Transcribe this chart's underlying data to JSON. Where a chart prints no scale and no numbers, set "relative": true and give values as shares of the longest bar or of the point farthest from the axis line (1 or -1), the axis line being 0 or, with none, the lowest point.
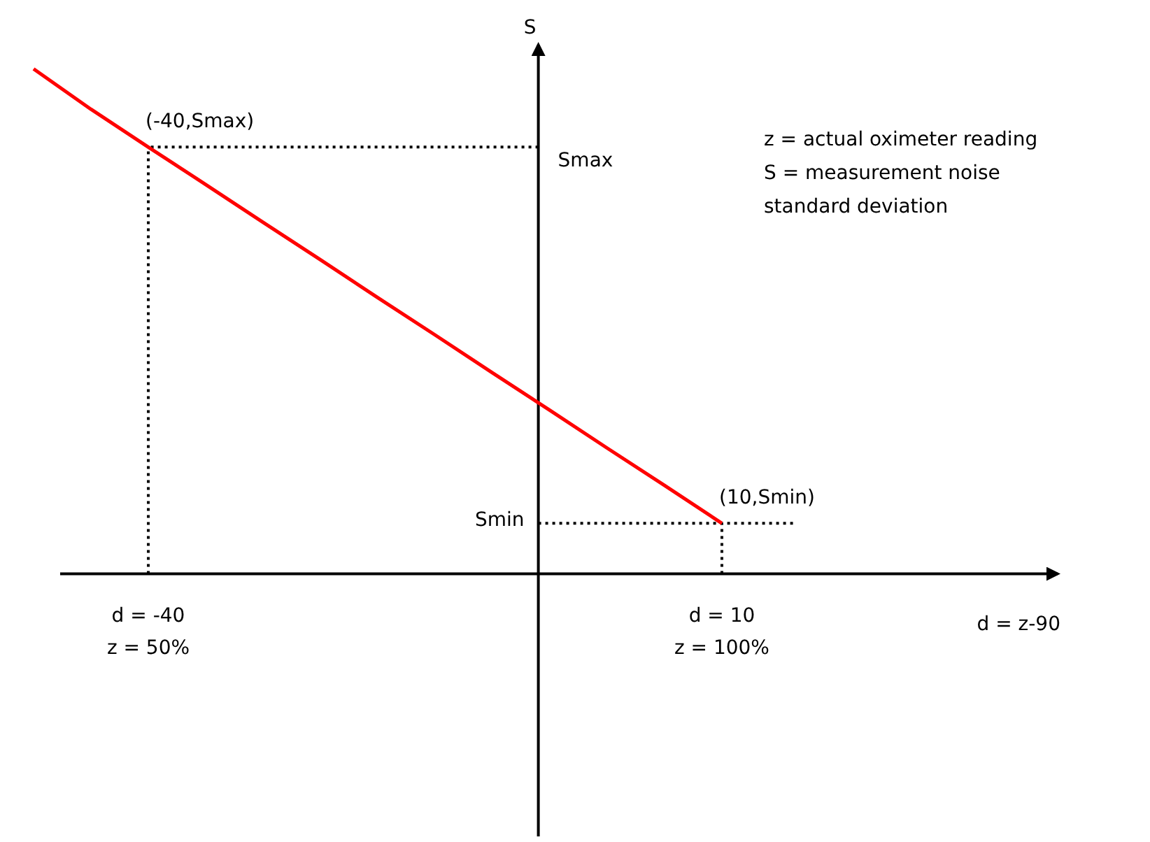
{
  "chart_data": {
    "type": "line",
    "relative": true,
    "categories": [
      null,
      null,
      "d = -40\nz = 50%",
      null,
      null,
      null,
      null,
      null,
      null,
      null,
      null,
      null,
      "d = 10\nz = 100%"
    ],
    "series": [
      {
        "color": "#ff0000",
        "values": [
          1,
          0.92,
          0.845,
          0.771,
          0.696,
          0.622,
          0.547,
          0.473,
          0.398,
          0.324,
          0.249,
          0.175,
          0.1
        ]
      }
    ],
    "ylabel": "S",
    "line_style": "solid",
    "ref_lines": [
      {
        "axis": "y",
        "value": 0.845,
        "label": "Smax",
        "line_style": "dotted",
        "color": "#000000"
      },
      {
        "axis": "y",
        "value": 0.1,
        "label": "Smin",
        "line_style": "dotted",
        "color": "#000000"
      },
      {
        "axis": "x",
        "value": "d = -40\nz = 50%",
        "line_style": "dotted",
        "color": "#000000"
      },
      {
        "axis": "x",
        "value": "d = 10\nz = 100%",
        "line_style": "dotted",
        "color": "#000000"
      }
    ],
    "annotations": [
      {
        "text": "(-40,Smax)",
        "x": "d = -40\nz = 50%",
        "y": 0.845
      },
      {
        "text": "(10,Smin)",
        "x": "d = 10\nz = 100%",
        "y": 0.1
      },
      "d = z-90",
      "z = actual oximeter reading",
      "S = measurement noise\nstandard deviation"
    ]
  }
}
